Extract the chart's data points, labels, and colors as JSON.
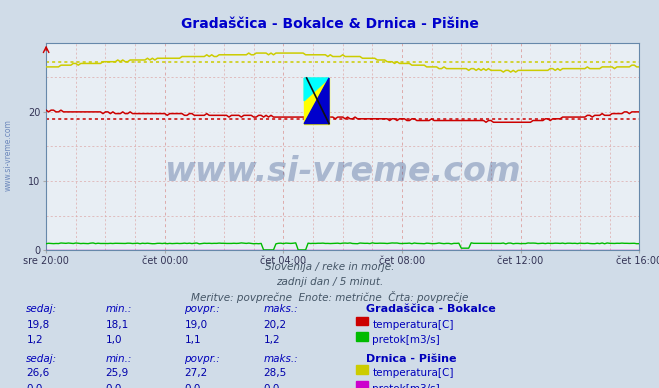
{
  "title": "Gradaščica - Bokalce & Drnica - Pišine",
  "title_color": "#0000cc",
  "title_fontsize": 10,
  "bg_color": "#d0dce8",
  "plot_bg_color": "#e8eef4",
  "fig_size": [
    6.59,
    3.88
  ],
  "dpi": 100,
  "xlim": [
    0,
    240
  ],
  "ylim": [
    0,
    30
  ],
  "yticks": [
    0,
    10,
    20
  ],
  "xtick_labels": [
    "sre 20:00",
    "čet 00:00",
    "čet 04:00",
    "čet 08:00",
    "čet 12:00",
    "čet 16:00"
  ],
  "xtick_positions": [
    0,
    48,
    96,
    144,
    192,
    240
  ],
  "watermark_text": "www.si-vreme.com",
  "watermark_color": "#1a3a7a",
  "watermark_alpha": 0.3,
  "watermark_fontsize": 24,
  "subtitle1": "Slovenija / reke in morje.",
  "subtitle2": "zadnji dan / 5 minut.",
  "subtitle3": "Meritve: povprečne  Enote: metrične  Črta: povprečje",
  "subtitle_color": "#445566",
  "subtitle_fontsize": 7.5,
  "avg_red": 19.0,
  "avg_yellow": 27.2,
  "color_red": "#cc0000",
  "color_yellow": "#cccc00",
  "color_green": "#00bb00",
  "color_magenta": "#cc00cc",
  "table_header_color": "#0000bb",
  "table_value_color": "#0000aa",
  "table_bokalce": {
    "station": "Gradaščica - Bokalce",
    "sedaj": "19,8",
    "min": "18,1",
    "povpr": "19,0",
    "maks": "20,2"
  },
  "table_pisine": {
    "station": "Drnica - Pišine",
    "sedaj": "26,6",
    "min": "25,9",
    "povpr": "27,2",
    "maks": "28,5"
  },
  "table_flow_bokalce": {
    "sedaj": "1,2",
    "min": "1,0",
    "povpr": "1,1",
    "maks": "1,2"
  },
  "table_flow_pisine": {
    "sedaj": "0,0",
    "min": "0,0",
    "povpr": "0,0",
    "maks": "0,0"
  }
}
